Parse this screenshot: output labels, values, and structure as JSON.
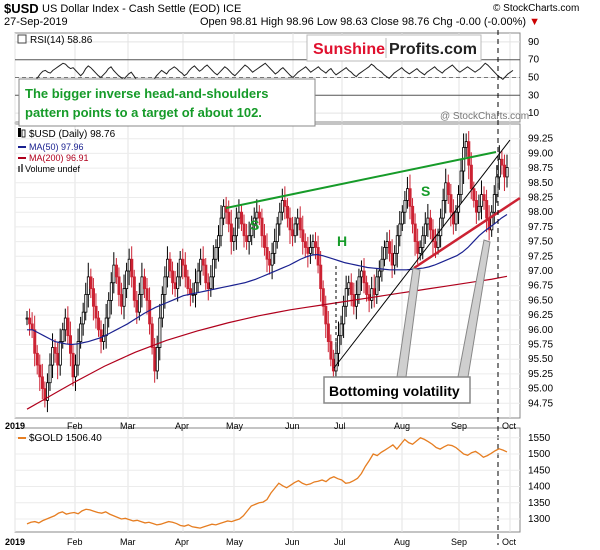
{
  "header": {
    "symbol": "$USD",
    "name": "US Dollar Index - Cash Settle (EOD)",
    "exchange": "ICE",
    "date": "27-Sep-2019",
    "open_label": "Open",
    "open": "98.81",
    "high_label": "High",
    "high": "98.96",
    "low_label": "Low",
    "low": "98.63",
    "close_label": "Close",
    "close": "98.76",
    "chg_label": "Chg",
    "chg": "-0.00 (-0.00%)",
    "chg_marker": "▼",
    "copyright": "© StockCharts.com",
    "watermark": "@ StockCharts.com"
  },
  "logo": {
    "part1": "Sunshine",
    "part2": "Profits.com"
  },
  "rsi": {
    "label": "RSI(14) 58.86",
    "ticks": [
      90,
      70,
      50,
      30,
      10
    ],
    "values": [
      48,
      46,
      44,
      42,
      43,
      45,
      47,
      50,
      54,
      57,
      58,
      56,
      55,
      58,
      60,
      62,
      64,
      66,
      65,
      62,
      60,
      61,
      58,
      55,
      52,
      55,
      60,
      63,
      61,
      58,
      55,
      52,
      50,
      53,
      56,
      60,
      62,
      58,
      55,
      52,
      50,
      48,
      51,
      54,
      56,
      52,
      48,
      45,
      42,
      40,
      38,
      40,
      44,
      48,
      52,
      55,
      58,
      56,
      54,
      58,
      60,
      62,
      60,
      57,
      55,
      52,
      54,
      58,
      61,
      63,
      60,
      57,
      59,
      62,
      64,
      61,
      58,
      55,
      53,
      56,
      59,
      62,
      60,
      57,
      54,
      52,
      55,
      58,
      61,
      64,
      62,
      59,
      56,
      58,
      60,
      62,
      64,
      66,
      63,
      60,
      57,
      54,
      56,
      59,
      61,
      58,
      55,
      52,
      50,
      53,
      56,
      58,
      60,
      62,
      59,
      56,
      58,
      60,
      62,
      59,
      57,
      55,
      58,
      60,
      56,
      53,
      55,
      57,
      59,
      61,
      58,
      56,
      53,
      51,
      54,
      56,
      58,
      60,
      62,
      65,
      63,
      60,
      58,
      56,
      53,
      51,
      49,
      52,
      55,
      57,
      59,
      61,
      58,
      56,
      54,
      56,
      58,
      60,
      57,
      55,
      53,
      56,
      58,
      60,
      62,
      59,
      57,
      55,
      58,
      60,
      62,
      64,
      61,
      58,
      56,
      58,
      60,
      62,
      60,
      58,
      56,
      58,
      60,
      63,
      66,
      64,
      61,
      58,
      55,
      52,
      50,
      48,
      51,
      54,
      56,
      58
    ]
  },
  "annotation": "The bigger inverse head-and-shoulders pattern points to a target of about 102.",
  "legend": {
    "price": "$USD (Daily) 98.76",
    "ma50": "MA(50) 97.96",
    "ma200": "MA(200) 96.91",
    "volume": "Volume undef"
  },
  "labels": {
    "s1": "S",
    "h": "H",
    "s2": "S",
    "bottoming": "Bottoming volatility"
  },
  "months": [
    "2019",
    "Feb",
    "Mar",
    "Apr",
    "May",
    "Jun",
    "Jul",
    "Aug",
    "Sep",
    "Oct"
  ],
  "gold_label": "$GOLD 1506.40",
  "colors": {
    "green": "#169b29",
    "red": "#cc2233",
    "ma50": "#1a2190",
    "ma200": "#b0001c",
    "gold": "#e67e22",
    "logo_red": "#e0102e"
  },
  "chart_data": [
    {
      "type": "line",
      "title": "$USD US Dollar Index - Cash Settle (EOD) ICE",
      "ylim": [
        94.5,
        99.5
      ],
      "yticks": [
        94.75,
        95.0,
        95.25,
        95.5,
        95.75,
        96.0,
        96.25,
        96.5,
        96.75,
        97.0,
        97.25,
        97.5,
        97.75,
        98.0,
        98.25,
        98.5,
        98.75,
        99.0,
        99.25
      ],
      "xticks": [
        "2019",
        "Feb",
        "Mar",
        "Apr",
        "May",
        "Jun",
        "Jul",
        "Aug",
        "Sep",
        "Oct"
      ],
      "series": [
        {
          "name": "$USD (Daily) 98.76",
          "values": [
            96.2,
            96.1,
            96.0,
            95.6,
            95.4,
            95.2,
            95.0,
            94.8,
            95.1,
            95.4,
            95.7,
            95.6,
            95.4,
            95.8,
            96.0,
            96.2,
            95.9,
            95.6,
            95.2,
            95.4,
            95.8,
            96.1,
            96.3,
            96.6,
            96.9,
            96.7,
            96.4,
            96.2,
            96.0,
            95.8,
            95.9,
            96.2,
            96.5,
            96.8,
            97.1,
            96.9,
            96.6,
            96.4,
            96.7,
            97.0,
            97.2,
            96.9,
            96.5,
            96.3,
            96.6,
            96.9,
            96.7,
            96.5,
            96.1,
            95.7,
            95.3,
            95.7,
            96.2,
            96.6,
            96.9,
            97.2,
            97.0,
            96.8,
            96.7,
            96.9,
            97.2,
            97.1,
            96.9,
            96.7,
            96.6,
            96.6,
            96.8,
            97.0,
            97.2,
            97.1,
            96.8,
            96.7,
            96.9,
            97.2,
            97.4,
            97.6,
            97.9,
            98.1,
            98.0,
            97.8,
            97.5,
            97.6,
            97.9,
            98.0,
            97.8,
            97.6,
            97.5,
            97.6,
            97.8,
            97.9,
            98.0,
            97.9,
            97.6,
            97.4,
            97.2,
            97.1,
            97.3,
            97.5,
            97.8,
            98.0,
            98.2,
            98.1,
            97.9,
            97.7,
            97.6,
            97.8,
            97.9,
            97.7,
            97.5,
            97.4,
            97.3,
            97.4,
            97.5,
            97.4,
            97.1,
            96.7,
            96.4,
            96.1,
            95.8,
            95.5,
            95.3,
            95.6,
            95.9,
            96.1,
            96.4,
            96.7,
            96.8,
            96.6,
            96.4,
            96.6,
            96.9,
            97.0,
            96.8,
            96.6,
            96.5,
            96.7,
            96.6,
            96.9,
            97.0,
            97.2,
            97.4,
            97.5,
            97.3,
            97.1,
            97.3,
            97.6,
            97.8,
            98.0,
            98.2,
            98.4,
            98.1,
            97.8,
            97.5,
            97.3,
            97.4,
            97.6,
            97.8,
            97.9,
            97.7,
            97.5,
            97.4,
            97.6,
            97.9,
            98.2,
            98.5,
            98.3,
            98.0,
            97.8,
            98.0,
            98.3,
            98.7,
            99.1,
            99.2,
            98.8,
            98.4,
            98.2,
            98.0,
            98.1,
            98.3,
            98.2,
            97.9,
            97.7,
            98.0,
            98.3,
            98.6,
            98.9,
            98.8,
            98.6,
            98.76
          ]
        },
        {
          "name": "MA(50) 97.96",
          "values": [
            96.0,
            96.0,
            95.95,
            95.9,
            95.85,
            95.8,
            95.78,
            95.76,
            95.75,
            95.76,
            95.78,
            95.8,
            95.83,
            95.86,
            95.9,
            95.95,
            96.0,
            96.05,
            96.1,
            96.16,
            96.22,
            96.28,
            96.33,
            96.38,
            96.42,
            96.46,
            96.5,
            96.54,
            96.58,
            96.6,
            96.62,
            96.64,
            96.66,
            96.68,
            96.7,
            96.72,
            96.74,
            96.76,
            96.78,
            96.8,
            96.83,
            96.86,
            96.9,
            96.94,
            96.98,
            97.02,
            97.06,
            97.1,
            97.15,
            97.2,
            97.24,
            97.27,
            97.28,
            97.26,
            97.23,
            97.2,
            97.17,
            97.14,
            97.12,
            97.1,
            97.08,
            97.06,
            97.05,
            97.04,
            97.03,
            97.02,
            97.02,
            97.02,
            97.02,
            97.03,
            97.04,
            97.05,
            97.07,
            97.1,
            97.14,
            97.18,
            97.22,
            97.26,
            97.32,
            97.4,
            97.5,
            97.6,
            97.68,
            97.75,
            97.82,
            97.9,
            97.96
          ]
        },
        {
          "name": "MA(200) 96.91",
          "values": [
            94.65,
            94.8,
            94.95,
            95.1,
            95.24,
            95.38,
            95.5,
            95.62,
            95.72,
            95.82,
            95.9,
            95.98,
            96.05,
            96.12,
            96.18,
            96.24,
            96.29,
            96.34,
            96.38,
            96.42,
            96.46,
            96.5,
            96.54,
            96.58,
            96.62,
            96.66,
            96.7,
            96.74,
            96.78,
            96.82,
            96.86,
            96.91
          ]
        }
      ]
    },
    {
      "type": "line",
      "title": "$GOLD 1506.40",
      "ylim": [
        1260,
        1580
      ],
      "yticks": [
        1300,
        1350,
        1400,
        1450,
        1500,
        1550
      ],
      "series": [
        {
          "name": "$GOLD 1506.40",
          "values": [
            1285,
            1290,
            1292,
            1288,
            1295,
            1300,
            1305,
            1310,
            1318,
            1322,
            1315,
            1318,
            1320,
            1316,
            1325,
            1330,
            1328,
            1324,
            1320,
            1318,
            1322,
            1315,
            1310,
            1305,
            1300,
            1302,
            1298,
            1294,
            1296,
            1292,
            1288,
            1290,
            1286,
            1282,
            1284,
            1288,
            1292,
            1290,
            1286,
            1280,
            1278,
            1282,
            1276,
            1274,
            1272,
            1276,
            1280,
            1284,
            1282,
            1286,
            1290,
            1294,
            1292,
            1296,
            1300,
            1310,
            1325,
            1340,
            1345,
            1350,
            1352,
            1360,
            1380,
            1395,
            1410,
            1402,
            1396,
            1404,
            1412,
            1418,
            1410,
            1405,
            1408,
            1414,
            1416,
            1420,
            1415,
            1425,
            1430,
            1424,
            1420,
            1410,
            1412,
            1418,
            1425,
            1440,
            1462,
            1480,
            1500,
            1495,
            1505,
            1512,
            1520,
            1528,
            1515,
            1530,
            1545,
            1535,
            1530,
            1540,
            1550,
            1545,
            1538,
            1530,
            1520,
            1515,
            1522,
            1528,
            1526,
            1520,
            1510,
            1500,
            1496,
            1504,
            1508,
            1500,
            1490,
            1495,
            1502,
            1510,
            1516,
            1512,
            1506.4
          ]
        }
      ]
    }
  ]
}
